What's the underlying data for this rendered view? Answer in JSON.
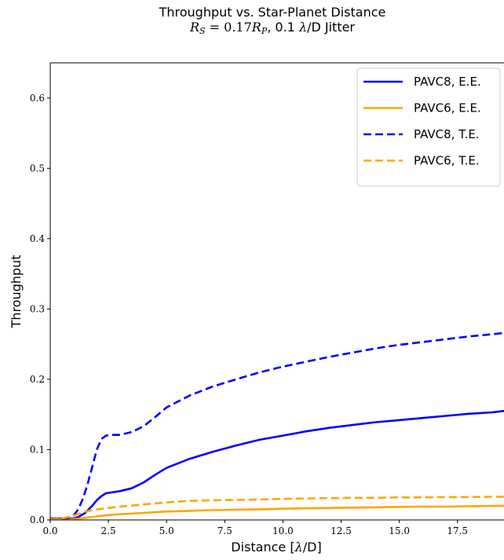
{
  "chart_data": {
    "type": "line",
    "title": "Throughput vs. Star-Planet Distance",
    "subtitle": "R_S = 0.17R_P, 0.1 λ/D Jitter",
    "xlabel": "Distance [λ/D]",
    "ylabel": "Throughput",
    "xlim": [
      0.0,
      19.5
    ],
    "ylim": [
      0.0,
      0.65
    ],
    "xticks": [
      "0.0",
      "2.5",
      "5.0",
      "7.5",
      "10.0",
      "12.5",
      "15.0",
      "17.5"
    ],
    "yticks": [
      "0.0",
      "0.1",
      "0.2",
      "0.3",
      "0.4",
      "0.5",
      "0.6"
    ],
    "grid": false,
    "legend_position": "top-right",
    "series": [
      {
        "name": "PAVC8, E.E.",
        "color": "#0000ff",
        "dash": "solid",
        "x": [
          0,
          0.5,
          1.0,
          1.2,
          1.5,
          1.8,
          2.0,
          2.2,
          2.4,
          2.6,
          3.0,
          3.5,
          4.0,
          4.5,
          5.0,
          6.0,
          7.0,
          8.0,
          9.0,
          10.0,
          11.0,
          12.0,
          13.0,
          14.0,
          15.0,
          16.0,
          17.0,
          18.0,
          19.0,
          19.5
        ],
        "y": [
          0.002,
          0.002,
          0.002,
          0.004,
          0.01,
          0.02,
          0.028,
          0.034,
          0.038,
          0.039,
          0.041,
          0.045,
          0.053,
          0.064,
          0.074,
          0.087,
          0.097,
          0.106,
          0.114,
          0.12,
          0.126,
          0.131,
          0.135,
          0.139,
          0.142,
          0.145,
          0.148,
          0.151,
          0.153,
          0.155
        ]
      },
      {
        "name": "PAVC6, E.E.",
        "color": "#ffa500",
        "dash": "solid",
        "x": [
          0,
          0.5,
          1.0,
          1.5,
          2.0,
          2.5,
          3.0,
          4.0,
          5.0,
          6.0,
          7.0,
          8.0,
          9.0,
          10.0,
          11.0,
          12.0,
          13.0,
          14.0,
          15.0,
          16.0,
          17.0,
          18.0,
          19.0,
          19.5
        ],
        "y": [
          0.001,
          0.001,
          0.001,
          0.003,
          0.005,
          0.007,
          0.008,
          0.01,
          0.012,
          0.013,
          0.014,
          0.0145,
          0.015,
          0.016,
          0.0165,
          0.017,
          0.0175,
          0.018,
          0.0185,
          0.019,
          0.019,
          0.0195,
          0.02,
          0.02
        ]
      },
      {
        "name": "PAVC8, T.E.",
        "color": "#0000ff",
        "dash": "dashed",
        "x": [
          0,
          0.5,
          0.8,
          1.0,
          1.2,
          1.4,
          1.6,
          1.8,
          2.0,
          2.2,
          2.4,
          2.6,
          3.0,
          3.5,
          4.0,
          4.5,
          5.0,
          6.0,
          7.0,
          8.0,
          9.0,
          10.0,
          11.0,
          12.0,
          13.0,
          14.0,
          15.0,
          16.0,
          17.0,
          18.0,
          19.0,
          19.5
        ],
        "y": [
          0.002,
          0.002,
          0.003,
          0.006,
          0.015,
          0.03,
          0.05,
          0.075,
          0.1,
          0.115,
          0.12,
          0.121,
          0.121,
          0.125,
          0.133,
          0.146,
          0.16,
          0.177,
          0.19,
          0.2,
          0.21,
          0.218,
          0.225,
          0.232,
          0.238,
          0.244,
          0.249,
          0.253,
          0.257,
          0.261,
          0.264,
          0.266
        ]
      },
      {
        "name": "PAVC6, T.E.",
        "color": "#ffa500",
        "dash": "dashed",
        "x": [
          0,
          0.5,
          1.0,
          1.5,
          2.0,
          2.5,
          3.0,
          4.0,
          5.0,
          6.0,
          7.0,
          8.0,
          9.0,
          10.0,
          11.0,
          12.0,
          13.0,
          14.0,
          15.0,
          16.0,
          17.0,
          18.0,
          19.0,
          19.5
        ],
        "y": [
          0.001,
          0.002,
          0.006,
          0.012,
          0.015,
          0.017,
          0.019,
          0.022,
          0.025,
          0.027,
          0.028,
          0.0285,
          0.029,
          0.03,
          0.0305,
          0.031,
          0.0315,
          0.0315,
          0.032,
          0.032,
          0.0325,
          0.0325,
          0.033,
          0.033
        ]
      }
    ]
  }
}
